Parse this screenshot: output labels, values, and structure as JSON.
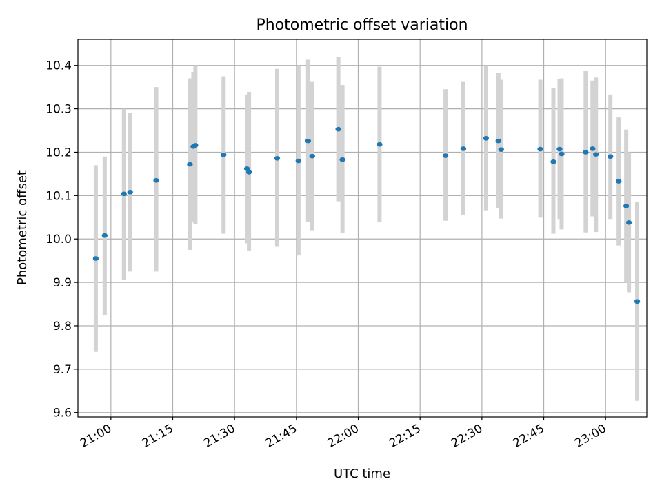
{
  "chart_data": {
    "type": "scatter",
    "title": "Photometric offset variation",
    "xlabel": "UTC time",
    "ylabel": "Photometric offset",
    "xlim": [
      "20:52",
      "23:10"
    ],
    "ylim": [
      9.59,
      10.46
    ],
    "xticks": [
      "21:00",
      "21:15",
      "21:30",
      "21:45",
      "22:00",
      "22:15",
      "22:30",
      "22:45",
      "23:00"
    ],
    "yticks": [
      "9.6",
      "9.7",
      "9.8",
      "9.9",
      "10.0",
      "10.1",
      "10.2",
      "10.3",
      "10.4"
    ],
    "grid": true,
    "marker_color": "#1f77b4",
    "errorbar_color": "#d3d3d3",
    "points": [
      {
        "x": "20:56:20",
        "y": 9.955,
        "ylo": 9.74,
        "yhi": 10.17
      },
      {
        "x": "20:58:30",
        "y": 10.008,
        "ylo": 9.825,
        "yhi": 10.19
      },
      {
        "x": "21:03:10",
        "y": 10.104,
        "ylo": 9.905,
        "yhi": 10.3
      },
      {
        "x": "21:04:40",
        "y": 10.108,
        "ylo": 9.925,
        "yhi": 10.29
      },
      {
        "x": "21:11:00",
        "y": 10.135,
        "ylo": 9.925,
        "yhi": 10.35
      },
      {
        "x": "21:19:10",
        "y": 10.172,
        "ylo": 9.975,
        "yhi": 10.37
      },
      {
        "x": "21:20:00",
        "y": 10.213,
        "ylo": 10.04,
        "yhi": 10.385
      },
      {
        "x": "21:20:30",
        "y": 10.216,
        "ylo": 10.035,
        "yhi": 10.4
      },
      {
        "x": "21:27:20",
        "y": 10.194,
        "ylo": 10.012,
        "yhi": 10.375
      },
      {
        "x": "21:33:00",
        "y": 10.162,
        "ylo": 9.99,
        "yhi": 10.333
      },
      {
        "x": "21:33:30",
        "y": 10.154,
        "ylo": 9.972,
        "yhi": 10.338
      },
      {
        "x": "21:40:20",
        "y": 10.186,
        "ylo": 9.982,
        "yhi": 10.392
      },
      {
        "x": "21:45:30",
        "y": 10.18,
        "ylo": 9.962,
        "yhi": 10.4
      },
      {
        "x": "21:47:50",
        "y": 10.226,
        "ylo": 10.04,
        "yhi": 10.413
      },
      {
        "x": "21:48:50",
        "y": 10.191,
        "ylo": 10.02,
        "yhi": 10.362
      },
      {
        "x": "21:55:10",
        "y": 10.253,
        "ylo": 10.087,
        "yhi": 10.42
      },
      {
        "x": "21:56:10",
        "y": 10.183,
        "ylo": 10.013,
        "yhi": 10.355
      },
      {
        "x": "22:05:10",
        "y": 10.218,
        "ylo": 10.04,
        "yhi": 10.397
      },
      {
        "x": "22:21:10",
        "y": 10.192,
        "ylo": 10.042,
        "yhi": 10.345
      },
      {
        "x": "22:25:30",
        "y": 10.208,
        "ylo": 10.056,
        "yhi": 10.362
      },
      {
        "x": "22:31:00",
        "y": 10.232,
        "ylo": 10.066,
        "yhi": 10.4
      },
      {
        "x": "22:34:00",
        "y": 10.226,
        "ylo": 10.071,
        "yhi": 10.382
      },
      {
        "x": "22:34:40",
        "y": 10.206,
        "ylo": 10.047,
        "yhi": 10.367
      },
      {
        "x": "22:44:10",
        "y": 10.207,
        "ylo": 10.049,
        "yhi": 10.367
      },
      {
        "x": "22:47:20",
        "y": 10.178,
        "ylo": 10.012,
        "yhi": 10.348
      },
      {
        "x": "22:48:50",
        "y": 10.207,
        "ylo": 10.046,
        "yhi": 10.368
      },
      {
        "x": "22:49:20",
        "y": 10.196,
        "ylo": 10.022,
        "yhi": 10.37
      },
      {
        "x": "22:55:10",
        "y": 10.2,
        "ylo": 10.015,
        "yhi": 10.387
      },
      {
        "x": "22:56:50",
        "y": 10.208,
        "ylo": 10.052,
        "yhi": 10.365
      },
      {
        "x": "22:57:40",
        "y": 10.195,
        "ylo": 10.016,
        "yhi": 10.372
      },
      {
        "x": "23:01:10",
        "y": 10.19,
        "ylo": 10.046,
        "yhi": 10.333
      },
      {
        "x": "23:03:10",
        "y": 10.133,
        "ylo": 9.985,
        "yhi": 10.28
      },
      {
        "x": "23:05:00",
        "y": 10.076,
        "ylo": 9.9,
        "yhi": 10.252
      },
      {
        "x": "23:05:40",
        "y": 10.038,
        "ylo": 9.877,
        "yhi": 10.2
      },
      {
        "x": "23:07:40",
        "y": 9.856,
        "ylo": 9.627,
        "yhi": 10.085
      }
    ]
  }
}
